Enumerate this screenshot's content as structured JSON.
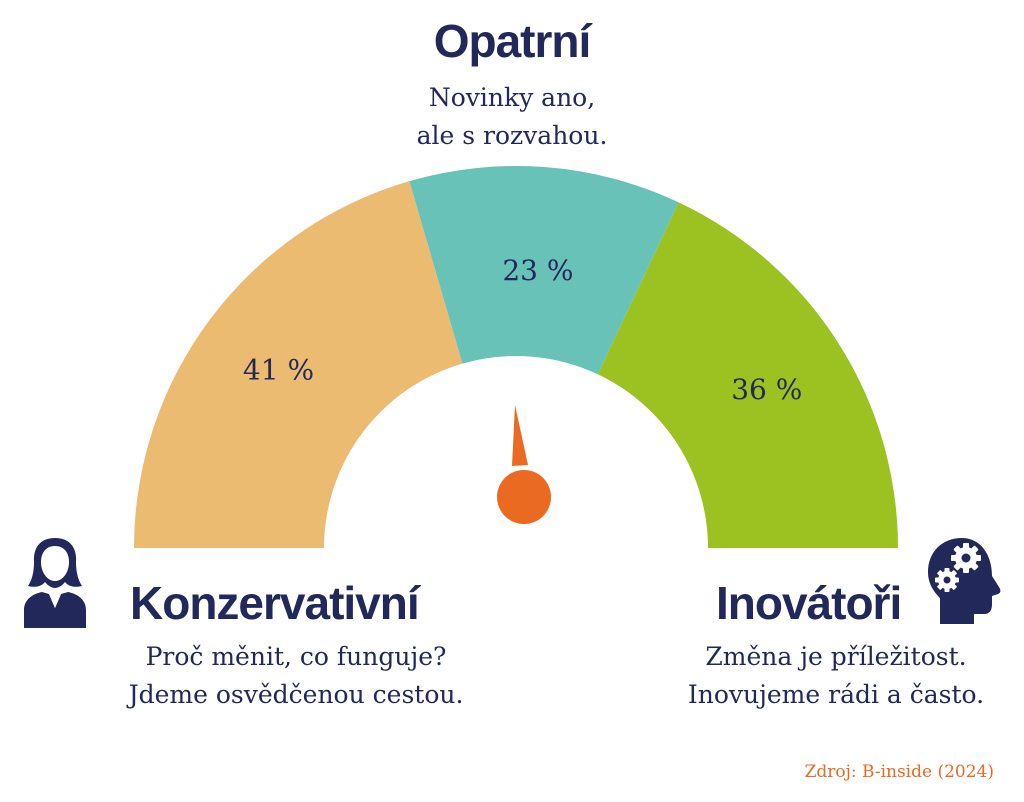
{
  "colors": {
    "konzervativni": "#ebbb72",
    "opatrni": "#68c2b7",
    "inovatori": "#9bc220",
    "needle": "#ea6a22",
    "text": "#23285a",
    "source": "#e86a24"
  },
  "categories": {
    "opatrni": {
      "title": "Opatrní",
      "line1": "Novinky ano,",
      "line2": "ale s rozvahou."
    },
    "konzervativni": {
      "title": "Konzervativní",
      "line1": "Proč měnit, co funguje?",
      "line2": "Jdeme osvědčenou cestou.",
      "icon": "woman-person-icon"
    },
    "inovatori": {
      "title": "Inovátoři",
      "line1": "Změna je příležitost.",
      "line2": "Inovujeme rádi a často.",
      "icon": "head-gears-icon"
    }
  },
  "source": "Zdroj: B-inside (2024)",
  "chart_data": {
    "type": "pie",
    "variant": "half-donut gauge",
    "segments": [
      {
        "name": "Konzervativní",
        "value": 41,
        "label": "41 %",
        "color": "#ebbb72"
      },
      {
        "name": "Opatrní",
        "value": 23,
        "label": "23 %",
        "color": "#68c2b7"
      },
      {
        "name": "Inovátoři",
        "value": 36,
        "label": "36 %",
        "color": "#9bc220"
      }
    ]
  }
}
